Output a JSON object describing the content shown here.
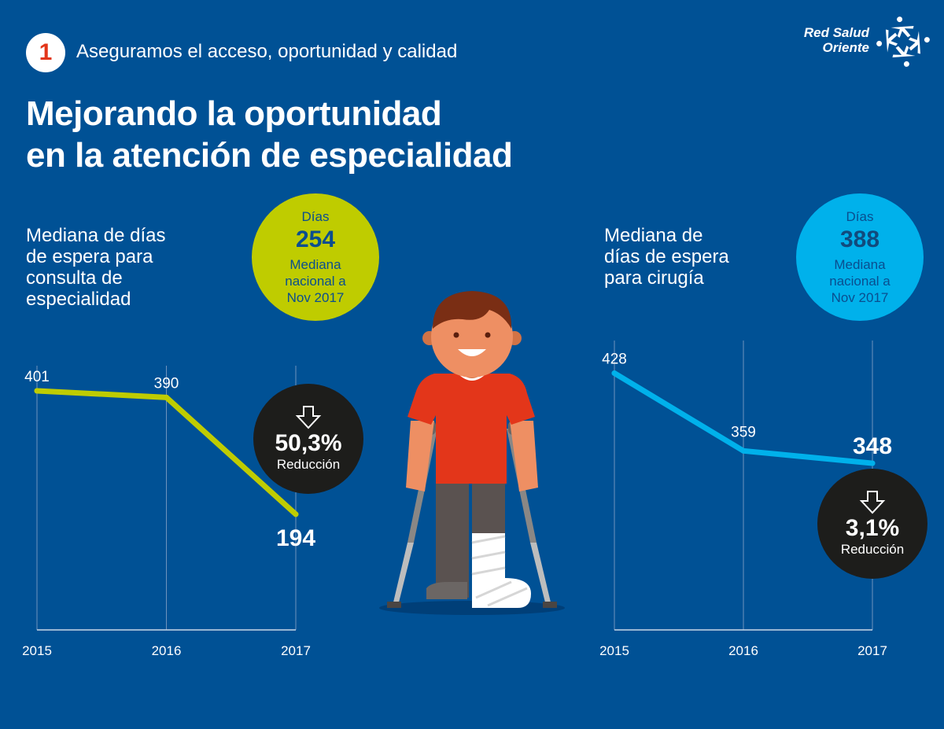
{
  "header": {
    "section_number": "1",
    "section_title": "Aseguramos el acceso, oportunidad y calidad",
    "title_line1": "Mejorando la oportunidad",
    "title_line2": "en la atención de especialidad",
    "logo": {
      "line1": "Red Salud",
      "line2": "Oriente",
      "icon": "people-star-logo-icon"
    }
  },
  "colors": {
    "background": "#005195",
    "green": "#bfcc00",
    "cyan": "#00b1eb",
    "dark": "#1d1d1b",
    "badge_text": "#e3361a"
  },
  "left_panel": {
    "heading": [
      "Mediana de días",
      "de espera para",
      "consulta de",
      "especialidad"
    ],
    "national_bubble": {
      "label": "Días",
      "value": "254",
      "sub": [
        "Mediana",
        "nacional a",
        "Nov 2017"
      ]
    },
    "reduction_bubble": {
      "icon": "arrow-down-outline-icon",
      "value": "50,3%",
      "label": "Reducción"
    }
  },
  "right_panel": {
    "heading": [
      "Mediana de",
      "días de espera",
      "para cirugía"
    ],
    "national_bubble": {
      "label": "Días",
      "value": "388",
      "sub": [
        "Mediana",
        "nacional a",
        "Nov 2017"
      ]
    },
    "reduction_bubble": {
      "icon": "arrow-down-outline-icon",
      "value": "3,1%",
      "label": "Reducción"
    }
  },
  "illustration": {
    "icon": "boy-with-crutches-and-leg-cast-illustration"
  },
  "chart_data": [
    {
      "type": "line",
      "title": "Mediana de días de espera para consulta de especialidad",
      "categories": [
        "2015",
        "2016",
        "2017"
      ],
      "series": [
        {
          "name": "Consulta de especialidad",
          "values": [
            401,
            390,
            194
          ],
          "color": "#bfcc00"
        }
      ],
      "data_labels": [
        "401",
        "390",
        "194"
      ],
      "highlight_last": true,
      "xlabel": "",
      "ylabel": "",
      "grid": "vertical",
      "ylim": [
        0,
        430
      ]
    },
    {
      "type": "line",
      "title": "Mediana de días de espera para cirugía",
      "categories": [
        "2015",
        "2016",
        "2017"
      ],
      "series": [
        {
          "name": "Cirugía",
          "values": [
            428,
            359,
            348
          ],
          "color": "#00b1eb"
        }
      ],
      "data_labels": [
        "428",
        "359",
        "348"
      ],
      "highlight_last": true,
      "xlabel": "",
      "ylabel": "",
      "grid": "vertical",
      "ylim": [
        200,
        450
      ]
    }
  ]
}
